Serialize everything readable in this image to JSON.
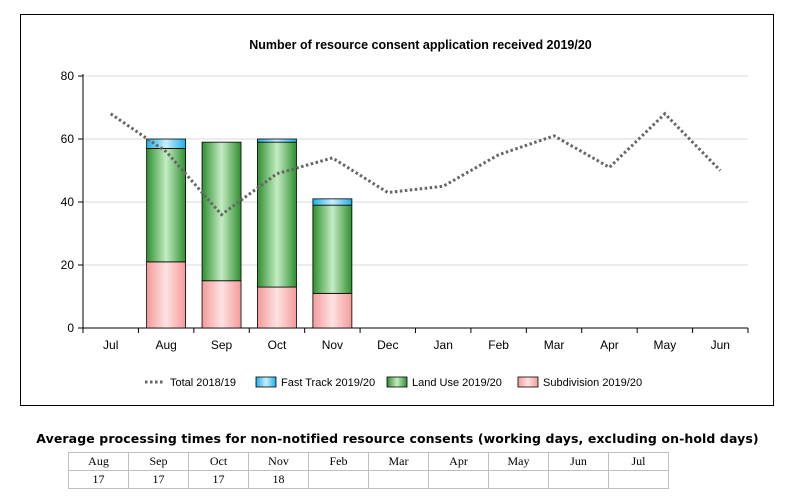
{
  "chart_data": {
    "type": "bar",
    "title": "Number of resource consent application received 2019/20",
    "categories": [
      "Jul",
      "Aug",
      "Sep",
      "Oct",
      "Nov",
      "Dec",
      "Jan",
      "Feb",
      "Mar",
      "Apr",
      "May",
      "Jun"
    ],
    "ylim": [
      0,
      80
    ],
    "yticks": [
      0,
      20,
      40,
      60,
      80
    ],
    "stacked": true,
    "legend_position": "bottom",
    "series": [
      {
        "name": "Subdivision 2019/20",
        "kind": "bar",
        "color": "#f4a6a6",
        "values": [
          null,
          21,
          15,
          13,
          11,
          null,
          null,
          null,
          null,
          null,
          null,
          null
        ]
      },
      {
        "name": "Land Use 2019/20",
        "kind": "bar",
        "color": "#3a9b3a",
        "values": [
          null,
          36,
          44,
          46,
          28,
          null,
          null,
          null,
          null,
          null,
          null,
          null
        ]
      },
      {
        "name": "Fast Track 2019/20",
        "kind": "bar",
        "color": "#3ac0ee",
        "values": [
          null,
          3,
          0,
          1,
          2,
          null,
          null,
          null,
          null,
          null,
          null,
          null
        ]
      },
      {
        "name": "Total 2018/19",
        "kind": "line",
        "color": "#666666",
        "values": [
          68,
          56,
          36,
          49,
          54,
          43,
          45,
          55,
          61,
          51,
          68,
          50
        ]
      }
    ],
    "legend_order": [
      "Total 2018/19",
      "Fast Track 2019/20",
      "Land Use 2019/20",
      "Subdivision 2019/20"
    ]
  },
  "processing_times": {
    "caption": "Average processing times for non-notified resource consents (working days, excluding on-hold days)",
    "months": [
      "Aug",
      "Sep",
      "Oct",
      "Nov",
      "Feb",
      "Mar",
      "Apr",
      "May",
      "Jun",
      "Jul"
    ],
    "values": [
      "17",
      "17",
      "17",
      "18",
      "",
      "",
      "",
      "",
      "",
      ""
    ]
  }
}
